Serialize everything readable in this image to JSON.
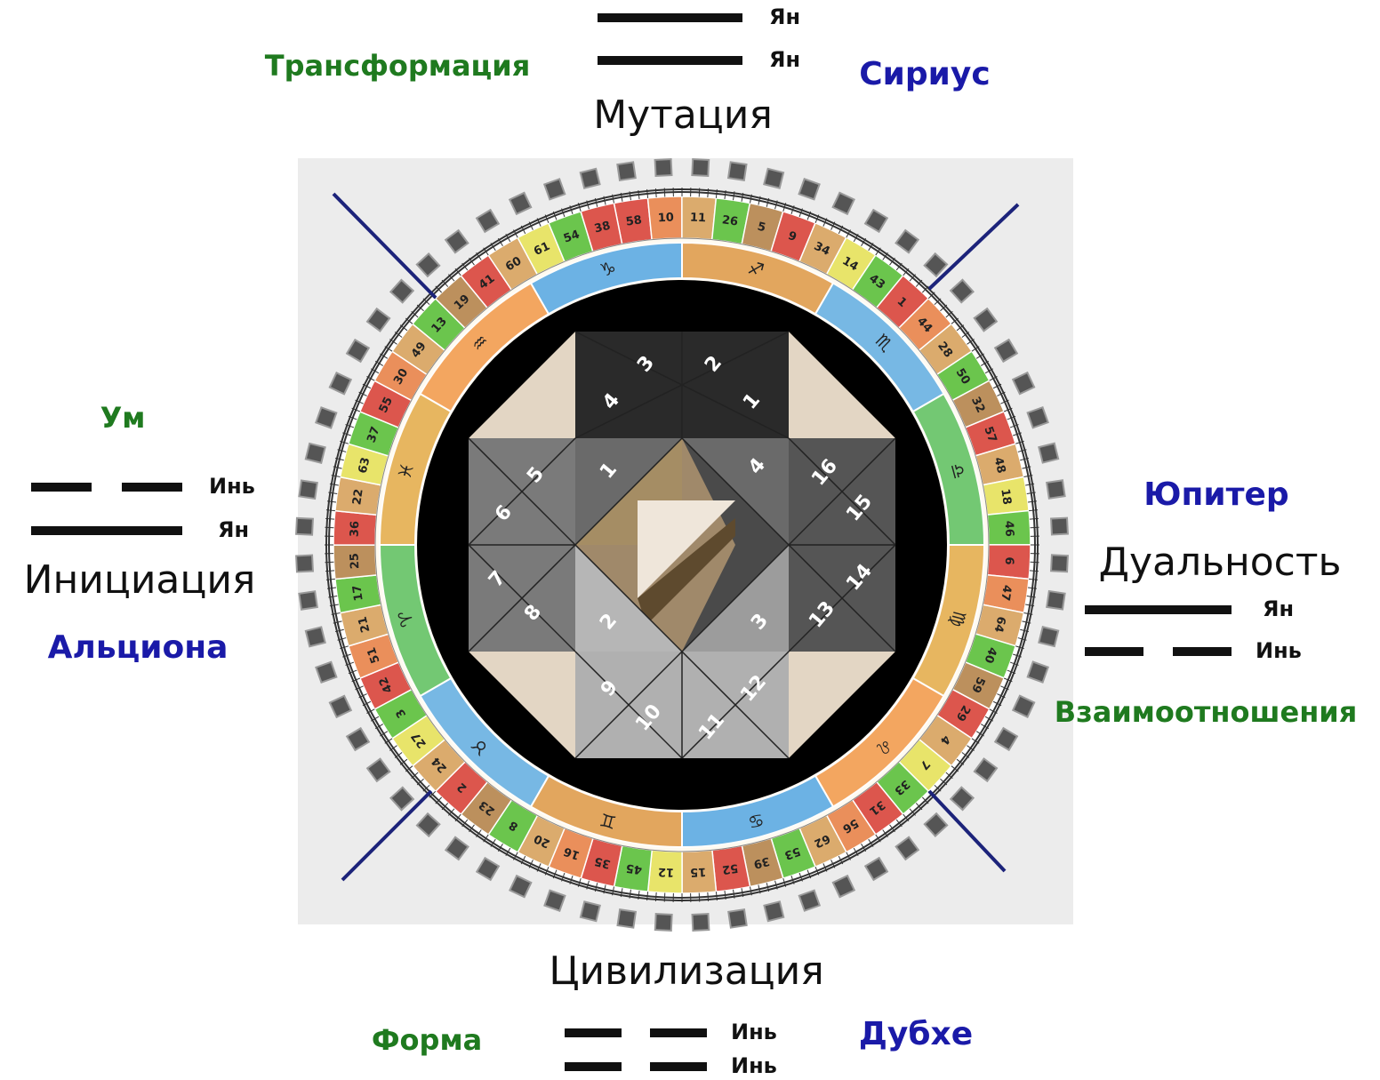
{
  "quarters": [
    {
      "name": "Мутация",
      "theme": "Трансформация",
      "star": "Сириус",
      "lines": [
        {
          "label": "Ян",
          "broken": false
        },
        {
          "label": "Ян",
          "broken": false
        }
      ]
    },
    {
      "name": "Дуальность",
      "theme": "Взаимоотношения",
      "star": "Юпитер",
      "lines": [
        {
          "label": "Ян",
          "broken": false
        },
        {
          "label": "Инь",
          "broken": true
        }
      ]
    },
    {
      "name": "Цивилизация",
      "theme": "Форма",
      "star": "Дубхе",
      "lines": [
        {
          "label": "Инь",
          "broken": true
        },
        {
          "label": "Инь",
          "broken": true
        }
      ]
    },
    {
      "name": "Инициация",
      "theme": "Ум",
      "star": "Альциона",
      "lines": [
        {
          "label": "Инь",
          "broken": true
        },
        {
          "label": "Ян",
          "broken": false
        }
      ]
    }
  ],
  "gates": [
    58,
    10,
    11,
    26,
    5,
    9,
    34,
    14,
    43,
    1,
    44,
    28,
    50,
    32,
    57,
    48,
    18,
    46,
    6,
    47,
    64,
    40,
    59,
    29,
    4,
    7,
    33,
    31,
    56,
    62,
    53,
    39,
    52,
    15,
    12,
    45,
    35,
    16,
    20,
    8,
    23,
    2,
    24,
    27,
    3,
    42,
    51,
    21,
    17,
    25,
    36,
    22,
    63,
    37,
    55,
    30,
    49,
    13,
    19,
    41,
    60,
    61,
    54,
    38
  ],
  "signs": [
    "♐",
    "♏",
    "♎",
    "♍",
    "♌",
    "♋",
    "♊",
    "♉",
    "♈",
    "♓",
    "♒",
    "♑"
  ],
  "center": {
    "top": [
      3,
      2,
      4,
      1
    ],
    "left": [
      5,
      6,
      7,
      8
    ],
    "middle": [
      1,
      4,
      2,
      3
    ],
    "right": [
      16,
      15,
      14,
      13
    ],
    "bottom": [
      9,
      10,
      11,
      12
    ]
  }
}
